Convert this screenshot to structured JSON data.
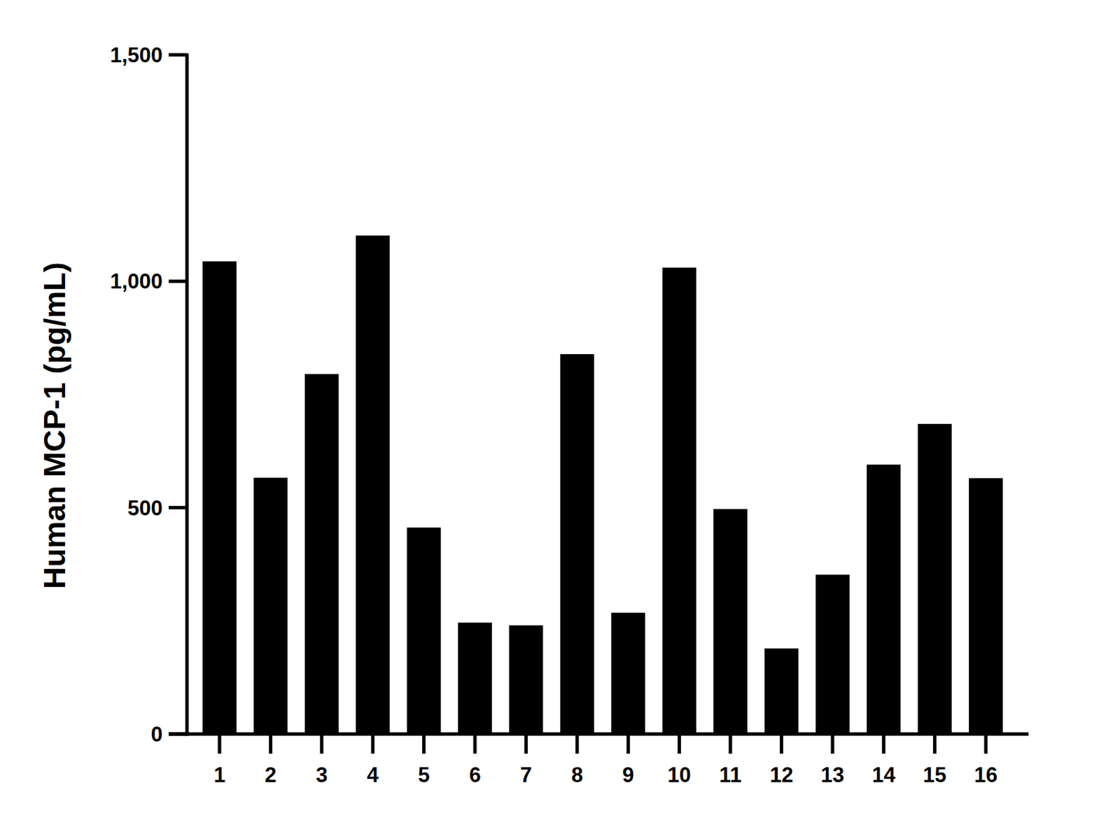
{
  "chart_data": {
    "type": "bar",
    "y_label": "Human MCP-1 (pg/mL)",
    "categories": [
      "1",
      "2",
      "3",
      "4",
      "5",
      "6",
      "7",
      "8",
      "9",
      "10",
      "11",
      "12",
      "13",
      "14",
      "15",
      "16"
    ],
    "values": [
      1044,
      566,
      795,
      1101,
      456,
      246,
      240,
      839,
      268,
      1030,
      497,
      189,
      352,
      595,
      685,
      565
    ],
    "color": "#000000",
    "ylim": [
      0,
      1500
    ],
    "yticks": [
      0,
      500,
      {
        "value": 1000,
        "label": "1,000"
      },
      {
        "value": 1500,
        "label": "1,500"
      }
    ],
    "grid": false
  }
}
